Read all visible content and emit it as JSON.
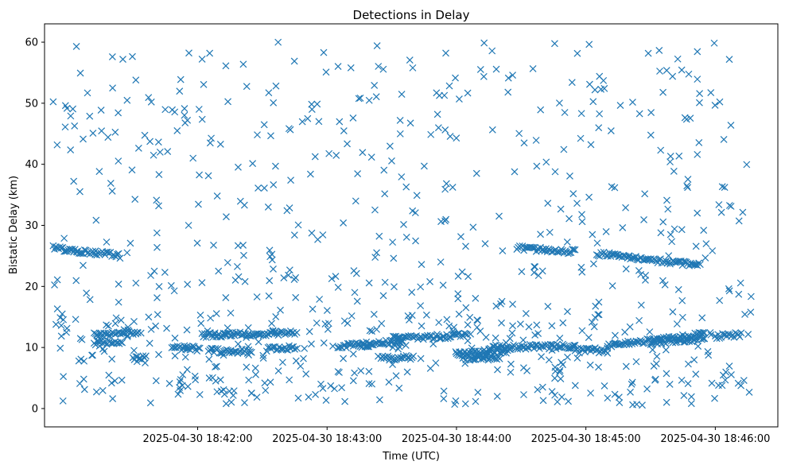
{
  "chart_data": {
    "type": "scatter",
    "title": "Detections in Delay",
    "xlabel": "Time (UTC)",
    "ylabel": "Bistatic Delay (km)",
    "marker": "x",
    "color": "#1f77b4",
    "grid": false,
    "legend": "none",
    "x_start": "2025-04-30 18:40:53",
    "x_end": "2025-04-30 18:46:17",
    "xlim": [
      "2025-04-30 18:40:49",
      "2025-04-30 18:46:29"
    ],
    "ylim": [
      -3,
      63
    ],
    "xticks": [
      "2025-04-30 18:42:00",
      "2025-04-30 18:43:00",
      "2025-04-30 18:44:00",
      "2025-04-30 18:45:00",
      "2025-04-30 18:46:00"
    ],
    "yticks": [
      "0",
      "10",
      "20",
      "30",
      "40",
      "50",
      "60"
    ],
    "tracks": [
      {
        "t_start": "2025-04-30 18:40:53",
        "t_end": "2025-04-30 18:41:24",
        "delay_start": 26.3,
        "delay_end": 25.0
      },
      {
        "t_start": "2025-04-30 18:41:12",
        "t_end": "2025-04-30 18:41:32",
        "delay_start": 12.0,
        "delay_end": 12.4
      },
      {
        "t_start": "2025-04-30 18:41:12",
        "t_end": "2025-04-30 18:41:25",
        "delay_start": 10.8,
        "delay_end": 10.9
      },
      {
        "t_start": "2025-04-30 18:41:30",
        "t_end": "2025-04-30 18:41:36",
        "delay_start": 8.3,
        "delay_end": 8.3
      },
      {
        "t_start": "2025-04-30 18:41:48",
        "t_end": "2025-04-30 18:42:01",
        "delay_start": 10.0,
        "delay_end": 9.8
      },
      {
        "t_start": "2025-04-30 18:42:02",
        "t_end": "2025-04-30 18:42:13",
        "delay_start": 12.0,
        "delay_end": 12.1
      },
      {
        "t_start": "2025-04-30 18:42:05",
        "t_end": "2025-04-30 18:42:25",
        "delay_start": 9.5,
        "delay_end": 9.3
      },
      {
        "t_start": "2025-04-30 18:42:12",
        "t_end": "2025-04-30 18:42:45",
        "delay_start": 12.0,
        "delay_end": 12.5
      },
      {
        "t_start": "2025-04-30 18:42:32",
        "t_end": "2025-04-30 18:42:45",
        "delay_start": 9.8,
        "delay_end": 10.0
      },
      {
        "t_start": "2025-04-30 18:43:05",
        "t_end": "2025-04-30 18:43:20",
        "delay_start": 10.3,
        "delay_end": 10.4
      },
      {
        "t_start": "2025-04-30 18:43:15",
        "t_end": "2025-04-30 18:43:35",
        "delay_start": 10.4,
        "delay_end": 11.0
      },
      {
        "t_start": "2025-04-30 18:43:25",
        "t_end": "2025-04-30 18:43:40",
        "delay_start": 8.3,
        "delay_end": 8.3
      },
      {
        "t_start": "2025-04-30 18:43:30",
        "t_end": "2025-04-30 18:44:05",
        "delay_start": 11.5,
        "delay_end": 12.0
      },
      {
        "t_start": "2025-04-30 18:44:00",
        "t_end": "2025-04-30 18:44:25",
        "delay_start": 9.0,
        "delay_end": 9.5
      },
      {
        "t_start": "2025-04-30 18:44:03",
        "t_end": "2025-04-30 18:44:20",
        "delay_start": 8.3,
        "delay_end": 8.3
      },
      {
        "t_start": "2025-04-30 18:44:15",
        "t_end": "2025-04-30 18:44:55",
        "delay_start": 10.0,
        "delay_end": 10.2
      },
      {
        "t_start": "2025-04-30 18:44:28",
        "t_end": "2025-04-30 18:44:55",
        "delay_start": 26.3,
        "delay_end": 25.7
      },
      {
        "t_start": "2025-04-30 18:44:55",
        "t_end": "2025-04-30 18:45:10",
        "delay_start": 9.5,
        "delay_end": 9.4
      },
      {
        "t_start": "2025-04-30 18:45:05",
        "t_end": "2025-04-30 18:45:20",
        "delay_start": 25.3,
        "delay_end": 25.0
      },
      {
        "t_start": "2025-04-30 18:45:10",
        "t_end": "2025-04-30 18:45:55",
        "delay_start": 10.2,
        "delay_end": 12.2
      },
      {
        "t_start": "2025-04-30 18:45:20",
        "t_end": "2025-04-30 18:45:53",
        "delay_start": 24.7,
        "delay_end": 23.5
      },
      {
        "t_start": "2025-04-30 18:45:30",
        "t_end": "2025-04-30 18:45:55",
        "delay_start": 10.8,
        "delay_end": 11.5
      },
      {
        "t_start": "2025-04-30 18:46:00",
        "t_end": "2025-04-30 18:46:12",
        "delay_start": 11.8,
        "delay_end": 12.1
      }
    ],
    "scatter_count": 780,
    "scatter_delay_range": [
      0.5,
      60
    ]
  }
}
